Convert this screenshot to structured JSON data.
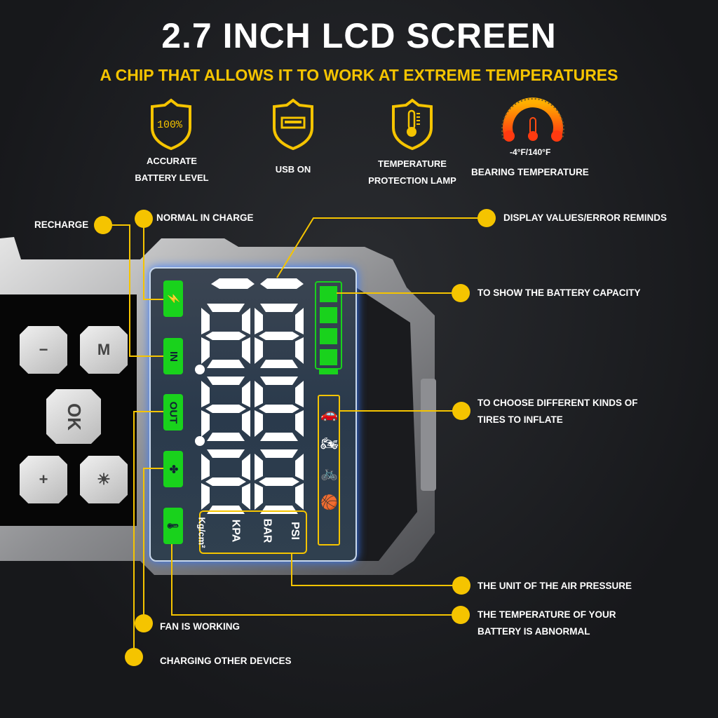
{
  "title": "2.7 INCH LCD SCREEN",
  "subtitle": "A CHIP THAT ALLOWS IT TO WORK AT EXTREME TEMPERATURES",
  "features": [
    {
      "icon": "battery-percent-shield-icon",
      "line1": "ACCURATE",
      "line2": "BATTERY LEVEL",
      "icon_text": "100%"
    },
    {
      "icon": "usb-shield-icon",
      "line1": "USB ON",
      "line2": ""
    },
    {
      "icon": "thermometer-shield-icon",
      "line1": "TEMPERATURE",
      "line2": "PROTECTION LAMP"
    },
    {
      "icon": "temperature-gauge-icon",
      "line1": "BEARING TEMPERATURE",
      "range": "-4°F/140°F"
    }
  ],
  "callouts": {
    "recharge": "RECHARGE",
    "normal_in_charge": "NORMAL IN CHARGE",
    "display_values": "DISPLAY VALUES/ERROR REMINDS",
    "battery_capacity": "TO SHOW THE BATTERY CAPACITY",
    "tires_line1": "TO CHOOSE DIFFERENT KINDS OF",
    "tires_line2": "TIRES TO INFLATE",
    "air_pressure": "THE UNIT OF THE AIR PRESSURE",
    "temp_line1": "THE TEMPERATURE OF YOUR",
    "temp_line2": "BATTERY IS ABNORMAL",
    "fan": "FAN IS WORKING",
    "charging_other": "CHARGING OTHER DEVICES"
  },
  "device": {
    "buttons": {
      "minus": "−",
      "mode": "M",
      "ok": "OK",
      "plus": "+",
      "light": "☀"
    },
    "indicators": {
      "in": "IN",
      "out": "OUT"
    },
    "units": [
      "PSI",
      "BAR",
      "KPA",
      "Kg/cm²"
    ],
    "battery_bars": 4
  },
  "colors": {
    "accent": "#f5c400",
    "indicator_green": "#19d21c"
  }
}
